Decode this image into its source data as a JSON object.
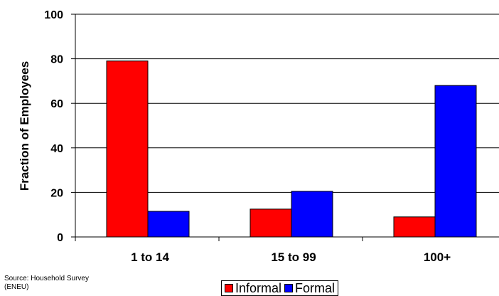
{
  "chart_data": {
    "type": "bar",
    "title": "",
    "xlabel": "",
    "ylabel": "Fraction of Employees",
    "ylim": [
      0,
      100
    ],
    "yticks": [
      0,
      20,
      40,
      60,
      80,
      100
    ],
    "categories": [
      "1 to 14",
      "15 to 99",
      "100+"
    ],
    "series": [
      {
        "name": "Informal",
        "color": "#ff0000",
        "values": [
          79,
          12.5,
          9
        ]
      },
      {
        "name": "Formal",
        "color": "#0000ff",
        "values": [
          11.5,
          20.5,
          68
        ]
      }
    ],
    "grid": "horizontal",
    "legend": "bottom"
  },
  "source": [
    "Source:  Household Survey",
    "(ENEU)"
  ]
}
